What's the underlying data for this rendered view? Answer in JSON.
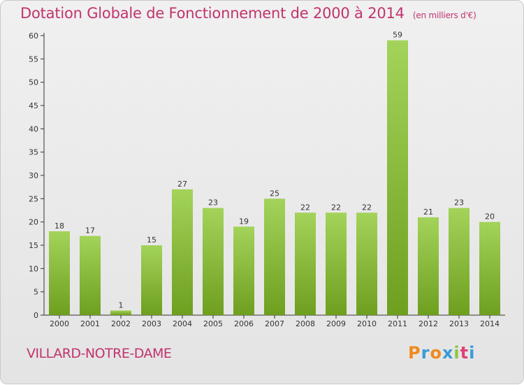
{
  "header": {
    "title": "Dotation Globale de Fonctionnement de 2000 à 2014",
    "subtitle": "(en milliers d'€)"
  },
  "footer": {
    "commune": "VILLARD-NOTRE-DAME",
    "logo_letters": [
      "P",
      "r",
      "o",
      "x",
      "i",
      "t",
      "i"
    ]
  },
  "colors": {
    "title": "#c2336e",
    "bar_light": "#a3d35a",
    "bar_dark": "#6e9f1f",
    "axis": "#333333",
    "logo": [
      "#f08a1c",
      "#3a9ad9",
      "#f08a1c",
      "#3a9ad9",
      "#8cc63f",
      "#e0407a",
      "#3a9ad9"
    ]
  },
  "chart_data": {
    "type": "bar",
    "title": "Dotation Globale de Fonctionnement de 2000 à 2014",
    "ylabel": "(en milliers d'€)",
    "xlabel": "",
    "categories": [
      "2000",
      "2001",
      "2002",
      "2003",
      "2004",
      "2005",
      "2006",
      "2007",
      "2008",
      "2009",
      "2010",
      "2011",
      "2012",
      "2013",
      "2014"
    ],
    "values": [
      18,
      17,
      1,
      15,
      27,
      23,
      19,
      25,
      22,
      22,
      22,
      59,
      21,
      23,
      20
    ],
    "ylim": [
      0,
      60
    ],
    "yticks": [
      0,
      5,
      10,
      15,
      20,
      25,
      30,
      35,
      40,
      45,
      50,
      55,
      60
    ],
    "grid": false,
    "data_labels": true
  }
}
